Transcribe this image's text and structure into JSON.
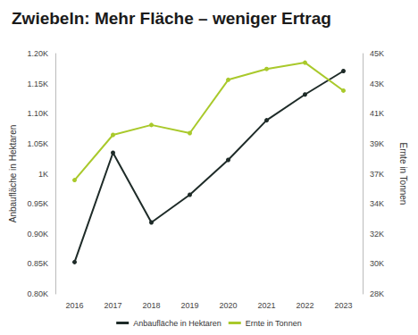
{
  "chart_data": {
    "type": "line",
    "title": "Zwiebeln: Mehr Fläche – weniger Ertrag",
    "categories": [
      "2016",
      "2017",
      "2018",
      "2019",
      "2020",
      "2021",
      "2022",
      "2023"
    ],
    "y_label": "Anbaufläche in Hektaren",
    "y2_label": "Ernte in Tonnen",
    "series": [
      {
        "name": "Anbaufläche in Hektaren",
        "color": "#1e2b28",
        "marker": "circle",
        "values": [
          853,
          1035,
          919,
          965,
          1023,
          1089,
          1132,
          1171
        ]
      },
      {
        "name": "Ernte in Tonnen",
        "color": "#a9c92b",
        "marker": "circle",
        "axis": "y2",
        "values": [
          36053,
          39248,
          39951,
          39376,
          43147,
          43913,
          44361,
          42380
        ]
      }
    ],
    "ylim": [
      800,
      1200
    ],
    "yticks": [
      {
        "value": 800,
        "label": "0.80K"
      },
      {
        "value": 850,
        "label": "0.85K"
      },
      {
        "value": 900,
        "label": "0.90K"
      },
      {
        "value": 950,
        "label": "0.95K"
      },
      {
        "value": 1000,
        "label": "1K"
      },
      {
        "value": 1050,
        "label": "1.05K"
      },
      {
        "value": 1100,
        "label": "1.10K"
      },
      {
        "value": 1150,
        "label": "1.15K"
      },
      {
        "value": 1200,
        "label": "1.20K"
      }
    ],
    "y2lim": [
      28000,
      45000
    ],
    "y2ticks": [
      {
        "value": 28000,
        "label": "28K"
      },
      {
        "value": 30125,
        "label": "30K"
      },
      {
        "value": 32250,
        "label": "32K"
      },
      {
        "value": 34375,
        "label": "34K"
      },
      {
        "value": 36500,
        "label": "37K"
      },
      {
        "value": 38625,
        "label": "39K"
      },
      {
        "value": 40750,
        "label": "41K"
      },
      {
        "value": 42875,
        "label": "43K"
      },
      {
        "value": 45000,
        "label": "45K"
      }
    ],
    "grid": false,
    "legend": "bottom"
  }
}
